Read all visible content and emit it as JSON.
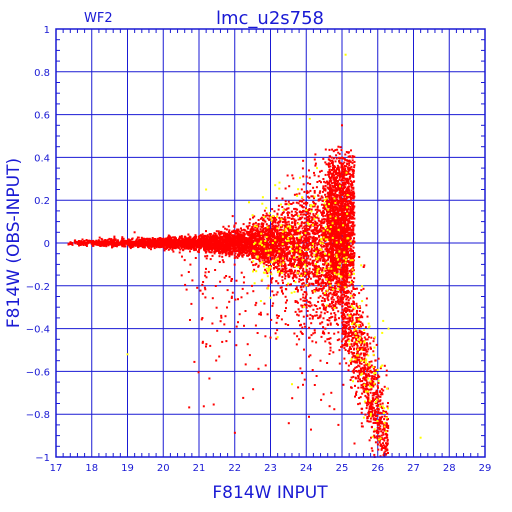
{
  "chart_data": {
    "type": "scatter",
    "title": "lmc_u2s758",
    "corner_label": "WF2",
    "xlabel": "F814W INPUT",
    "ylabel": "F814W (OBS-INPUT)",
    "xlim": [
      17,
      29
    ],
    "ylim": [
      -1,
      1
    ],
    "x_ticks": [
      17,
      18,
      19,
      20,
      21,
      22,
      23,
      24,
      25,
      26,
      27,
      28,
      29
    ],
    "y_ticks": [
      -1,
      -0.8,
      -0.6,
      -0.4,
      -0.2,
      0,
      0.2,
      0.4,
      0.6,
      0.8,
      1
    ],
    "y_tick_labels": [
      "−1",
      "−0.8",
      "−0.6",
      "−0.4",
      "−0.2",
      "0",
      "0.2",
      "0.4",
      "0.6",
      "0.8",
      "1"
    ],
    "grid": true,
    "colors": {
      "axes": "#1a1ad4",
      "main_points": "#ff0000",
      "highlight_points": "#ffff00",
      "grid": "#1a1ad4"
    },
    "series": [
      {
        "color": "#ff0000",
        "points": [
          [
            17.4,
            0.0
          ],
          [
            17.8,
            0.01
          ],
          [
            18.2,
            -0.01
          ],
          [
            18.6,
            0.01
          ],
          [
            19.0,
            0.0
          ],
          [
            19.4,
            0.01
          ],
          [
            19.8,
            -0.01
          ],
          [
            20.2,
            0.02
          ],
          [
            20.6,
            -0.02
          ],
          [
            21.0,
            0.03
          ],
          [
            21.3,
            -0.03
          ],
          [
            21.6,
            0.04
          ],
          [
            21.9,
            -0.05
          ],
          [
            22.2,
            0.06
          ],
          [
            22.5,
            -0.07
          ],
          [
            22.8,
            0.09
          ],
          [
            23.1,
            -0.1
          ],
          [
            23.4,
            0.12
          ],
          [
            23.7,
            -0.15
          ],
          [
            24.0,
            0.18
          ],
          [
            24.3,
            -0.22
          ],
          [
            24.6,
            0.28
          ],
          [
            24.9,
            0.45
          ],
          [
            25.0,
            0.55
          ],
          [
            25.1,
            0.3
          ],
          [
            25.2,
            -0.2
          ],
          [
            25.4,
            -0.35
          ],
          [
            25.6,
            -0.5
          ],
          [
            25.8,
            -0.7
          ],
          [
            26.0,
            -0.85
          ],
          [
            26.2,
            -0.95
          ],
          [
            19.2,
            0.05
          ],
          [
            20.6,
            -0.08
          ],
          [
            21.8,
            -0.22
          ],
          [
            22.6,
            -0.28
          ],
          [
            23.2,
            -0.35
          ],
          [
            23.8,
            -0.45
          ],
          [
            24.4,
            -0.55
          ],
          [
            24.7,
            -0.7
          ],
          [
            24.9,
            -0.85
          ],
          [
            25.3,
            -0.6
          ],
          [
            25.5,
            -0.75
          ],
          [
            25.9,
            -0.9
          ]
        ]
      },
      {
        "color": "#ffff00",
        "points": [
          [
            22.4,
            0.19
          ],
          [
            22.5,
            0.13
          ],
          [
            23.2,
            -0.44
          ],
          [
            23.6,
            -0.66
          ],
          [
            24.1,
            0.58
          ],
          [
            24.3,
            0.35
          ],
          [
            24.7,
            -0.12
          ],
          [
            25.1,
            0.88
          ],
          [
            25.3,
            -0.08
          ],
          [
            25.6,
            -0.55
          ],
          [
            26.3,
            -0.4
          ],
          [
            27.2,
            -0.91
          ],
          [
            19.0,
            -0.52
          ],
          [
            21.2,
            0.25
          ]
        ]
      }
    ]
  }
}
